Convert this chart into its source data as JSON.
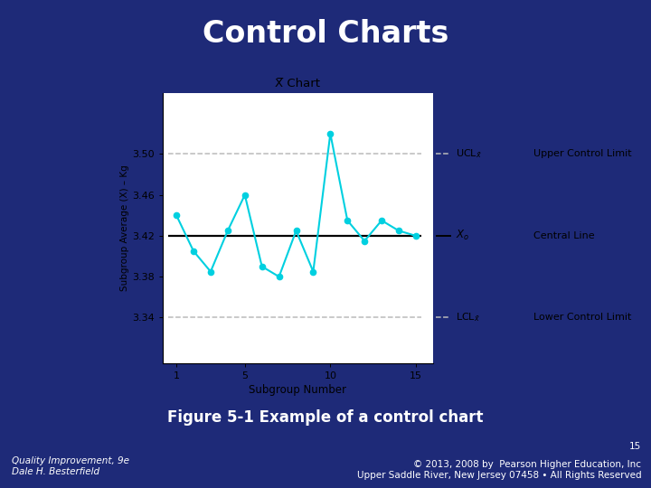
{
  "title": "Control Charts",
  "chart_title": "X̅ Chart",
  "xlabel": "Subgroup Number",
  "ylabel": "Subgroup Average (X) – Kg",
  "bg_color": "#1e2a78",
  "header_color": "#1a56a0",
  "plot_bg": "#ffffff",
  "subgroup_x": [
    1,
    2,
    3,
    4,
    5,
    6,
    7,
    8,
    9,
    10,
    11,
    12,
    13,
    14,
    15
  ],
  "subgroup_y": [
    3.44,
    3.405,
    3.385,
    3.425,
    3.46,
    3.39,
    3.38,
    3.425,
    3.385,
    3.52,
    3.435,
    3.415,
    3.435,
    3.425,
    3.42
  ],
  "UCL": 3.5,
  "CL": 3.42,
  "LCL": 3.34,
  "line_color": "#00d0e0",
  "cl_color": "#000000",
  "control_line_color": "#bbbbbb",
  "UCL_text": "Upper Control Limit",
  "CL_text": "Central Line",
  "LCL_text": "Lower Control Limit",
  "figure_caption": "Figure 5-1 Example of a control chart",
  "footer_left": "Quality Improvement, 9e\nDale H. Besterfield",
  "footer_right_top": "15",
  "footer_right_bot": "© 2013, 2008 by  Pearson Higher Education, Inc\nUpper Saddle River, New Jersey 07458 • All Rights Reserved",
  "footer_color": "#3a4aa0",
  "xlim": [
    0.2,
    16.0
  ],
  "ylim_low": 3.295,
  "ylim_high": 3.56,
  "yticks": [
    3.34,
    3.38,
    3.42,
    3.46,
    3.5
  ],
  "xticks": [
    1,
    5,
    10,
    15
  ]
}
